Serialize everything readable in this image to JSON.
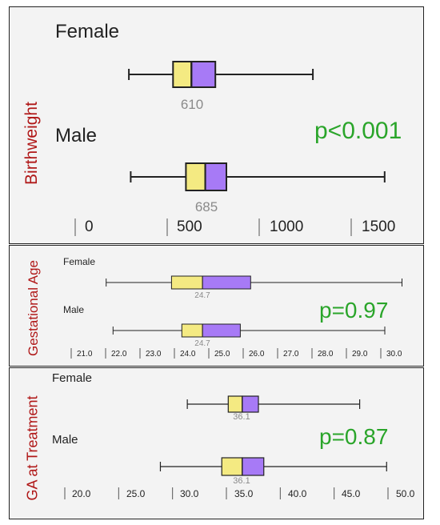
{
  "colors": {
    "q1": "#f4ea82",
    "q3": "#a77af6",
    "pvalue": "#2aa52a",
    "ylabel": "#b01818",
    "median_text": "#8a8a8a"
  },
  "chart_data": [
    {
      "type": "boxplot",
      "ylabel": "Birthweight",
      "annotation": "p<0.001",
      "xticks": [
        0,
        500,
        1000,
        1500
      ],
      "xtick_labels": [
        "0",
        "500",
        "1000",
        "1500"
      ],
      "series": [
        {
          "name": "Female",
          "whisker_low": 270,
          "q1": 510,
          "median": 610,
          "q3": 740,
          "whisker_high": 1270,
          "median_label": "610"
        },
        {
          "name": "Male",
          "whisker_low": 280,
          "q1": 580,
          "median": 685,
          "q3": 800,
          "whisker_high": 1660,
          "median_label": "685"
        }
      ]
    },
    {
      "type": "boxplot",
      "ylabel": "Gestational Age",
      "annotation": "p=0.97",
      "xticks": [
        21,
        22,
        23,
        24,
        25,
        26,
        27,
        28,
        29,
        30
      ],
      "xtick_labels": [
        "21.0",
        "22.0",
        "23.0",
        "24.0",
        "25.0",
        "26.0",
        "27.0",
        "28.0",
        "29.0",
        "30.0"
      ],
      "series": [
        {
          "name": "Female",
          "whisker_low": 21.9,
          "q1": 23.8,
          "median": 24.7,
          "q3": 26.1,
          "whisker_high": 30.5,
          "median_label": "24.7"
        },
        {
          "name": "Male",
          "whisker_low": 22.1,
          "q1": 24.1,
          "median": 24.7,
          "q3": 25.8,
          "whisker_high": 30.0,
          "median_label": "24.7"
        }
      ]
    },
    {
      "type": "boxplot",
      "ylabel": "GA at Treatment",
      "annotation": "p=0.87",
      "xticks": [
        20,
        25,
        30,
        35,
        40,
        45,
        50
      ],
      "xtick_labels": [
        "20.0",
        "25.0",
        "30.0",
        "35.0",
        "40.0",
        "45.0",
        "50.0"
      ],
      "series": [
        {
          "name": "Female",
          "whisker_low": 31.0,
          "q1": 34.8,
          "median": 36.1,
          "q3": 37.6,
          "whisker_high": 47.0,
          "median_label": "36.1"
        },
        {
          "name": "Male",
          "whisker_low": 28.5,
          "q1": 34.2,
          "median": 36.1,
          "q3": 38.1,
          "whisker_high": 49.5,
          "median_label": "36.1"
        }
      ]
    }
  ]
}
